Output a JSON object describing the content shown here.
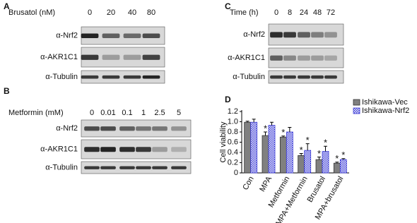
{
  "panels": [
    {
      "label": "A",
      "treatment": "Brusatol (nM)",
      "lanes": [
        "0",
        "20",
        "40",
        "80"
      ],
      "rows": [
        "α-Nrf2",
        "α-AKR1C1",
        "α-Tubulin"
      ]
    },
    {
      "label": "B",
      "treatment": "Metformin (mM)",
      "lanes": [
        "0",
        "0.01",
        "0.1",
        "1",
        "2.5",
        "5"
      ],
      "rows": [
        "α-Nrf2",
        "α-AKR1C1",
        "α-Tubulin"
      ]
    },
    {
      "label": "C",
      "treatment": "Time (h)",
      "lanes": [
        "0",
        "8",
        "24",
        "48",
        "72"
      ],
      "rows": [
        "α-Nrf2",
        "α-AKR1C1",
        "α-Tubulin"
      ]
    }
  ],
  "chart_data": {
    "type": "bar",
    "label": "D",
    "y_label": "Cell viability",
    "categories": [
      "Con",
      "MPA",
      "Metformin",
      "MPA+Metformin",
      "Brusatol",
      "MPA+brusatol"
    ],
    "series": [
      {
        "name": "Ishikawa-Vec",
        "color": "#808080",
        "values": [
          0.99,
          0.73,
          0.7,
          0.34,
          0.26,
          0.19
        ],
        "errors": [
          0.02,
          0.07,
          0.02,
          0.04,
          0.05,
          0.02
        ],
        "significance": [
          null,
          "*",
          "*",
          "*",
          "*",
          "*"
        ]
      },
      {
        "name": "Ishikawa-Nrf2",
        "color": "#3a3ad6",
        "values": [
          0.99,
          0.93,
          0.8,
          0.44,
          0.42,
          0.26
        ],
        "errors": [
          0.06,
          0.06,
          0.09,
          0.13,
          0.1,
          0.02
        ],
        "significance": [
          null,
          null,
          null,
          "*",
          "*",
          "*"
        ]
      }
    ],
    "ylim": [
      0,
      1.2
    ],
    "yticks": [
      0,
      0.2,
      0.4,
      0.6,
      0.8,
      {
        "value": 1,
        "label": "1.0"
      },
      1.2
    ],
    "legend": "top-right"
  }
}
